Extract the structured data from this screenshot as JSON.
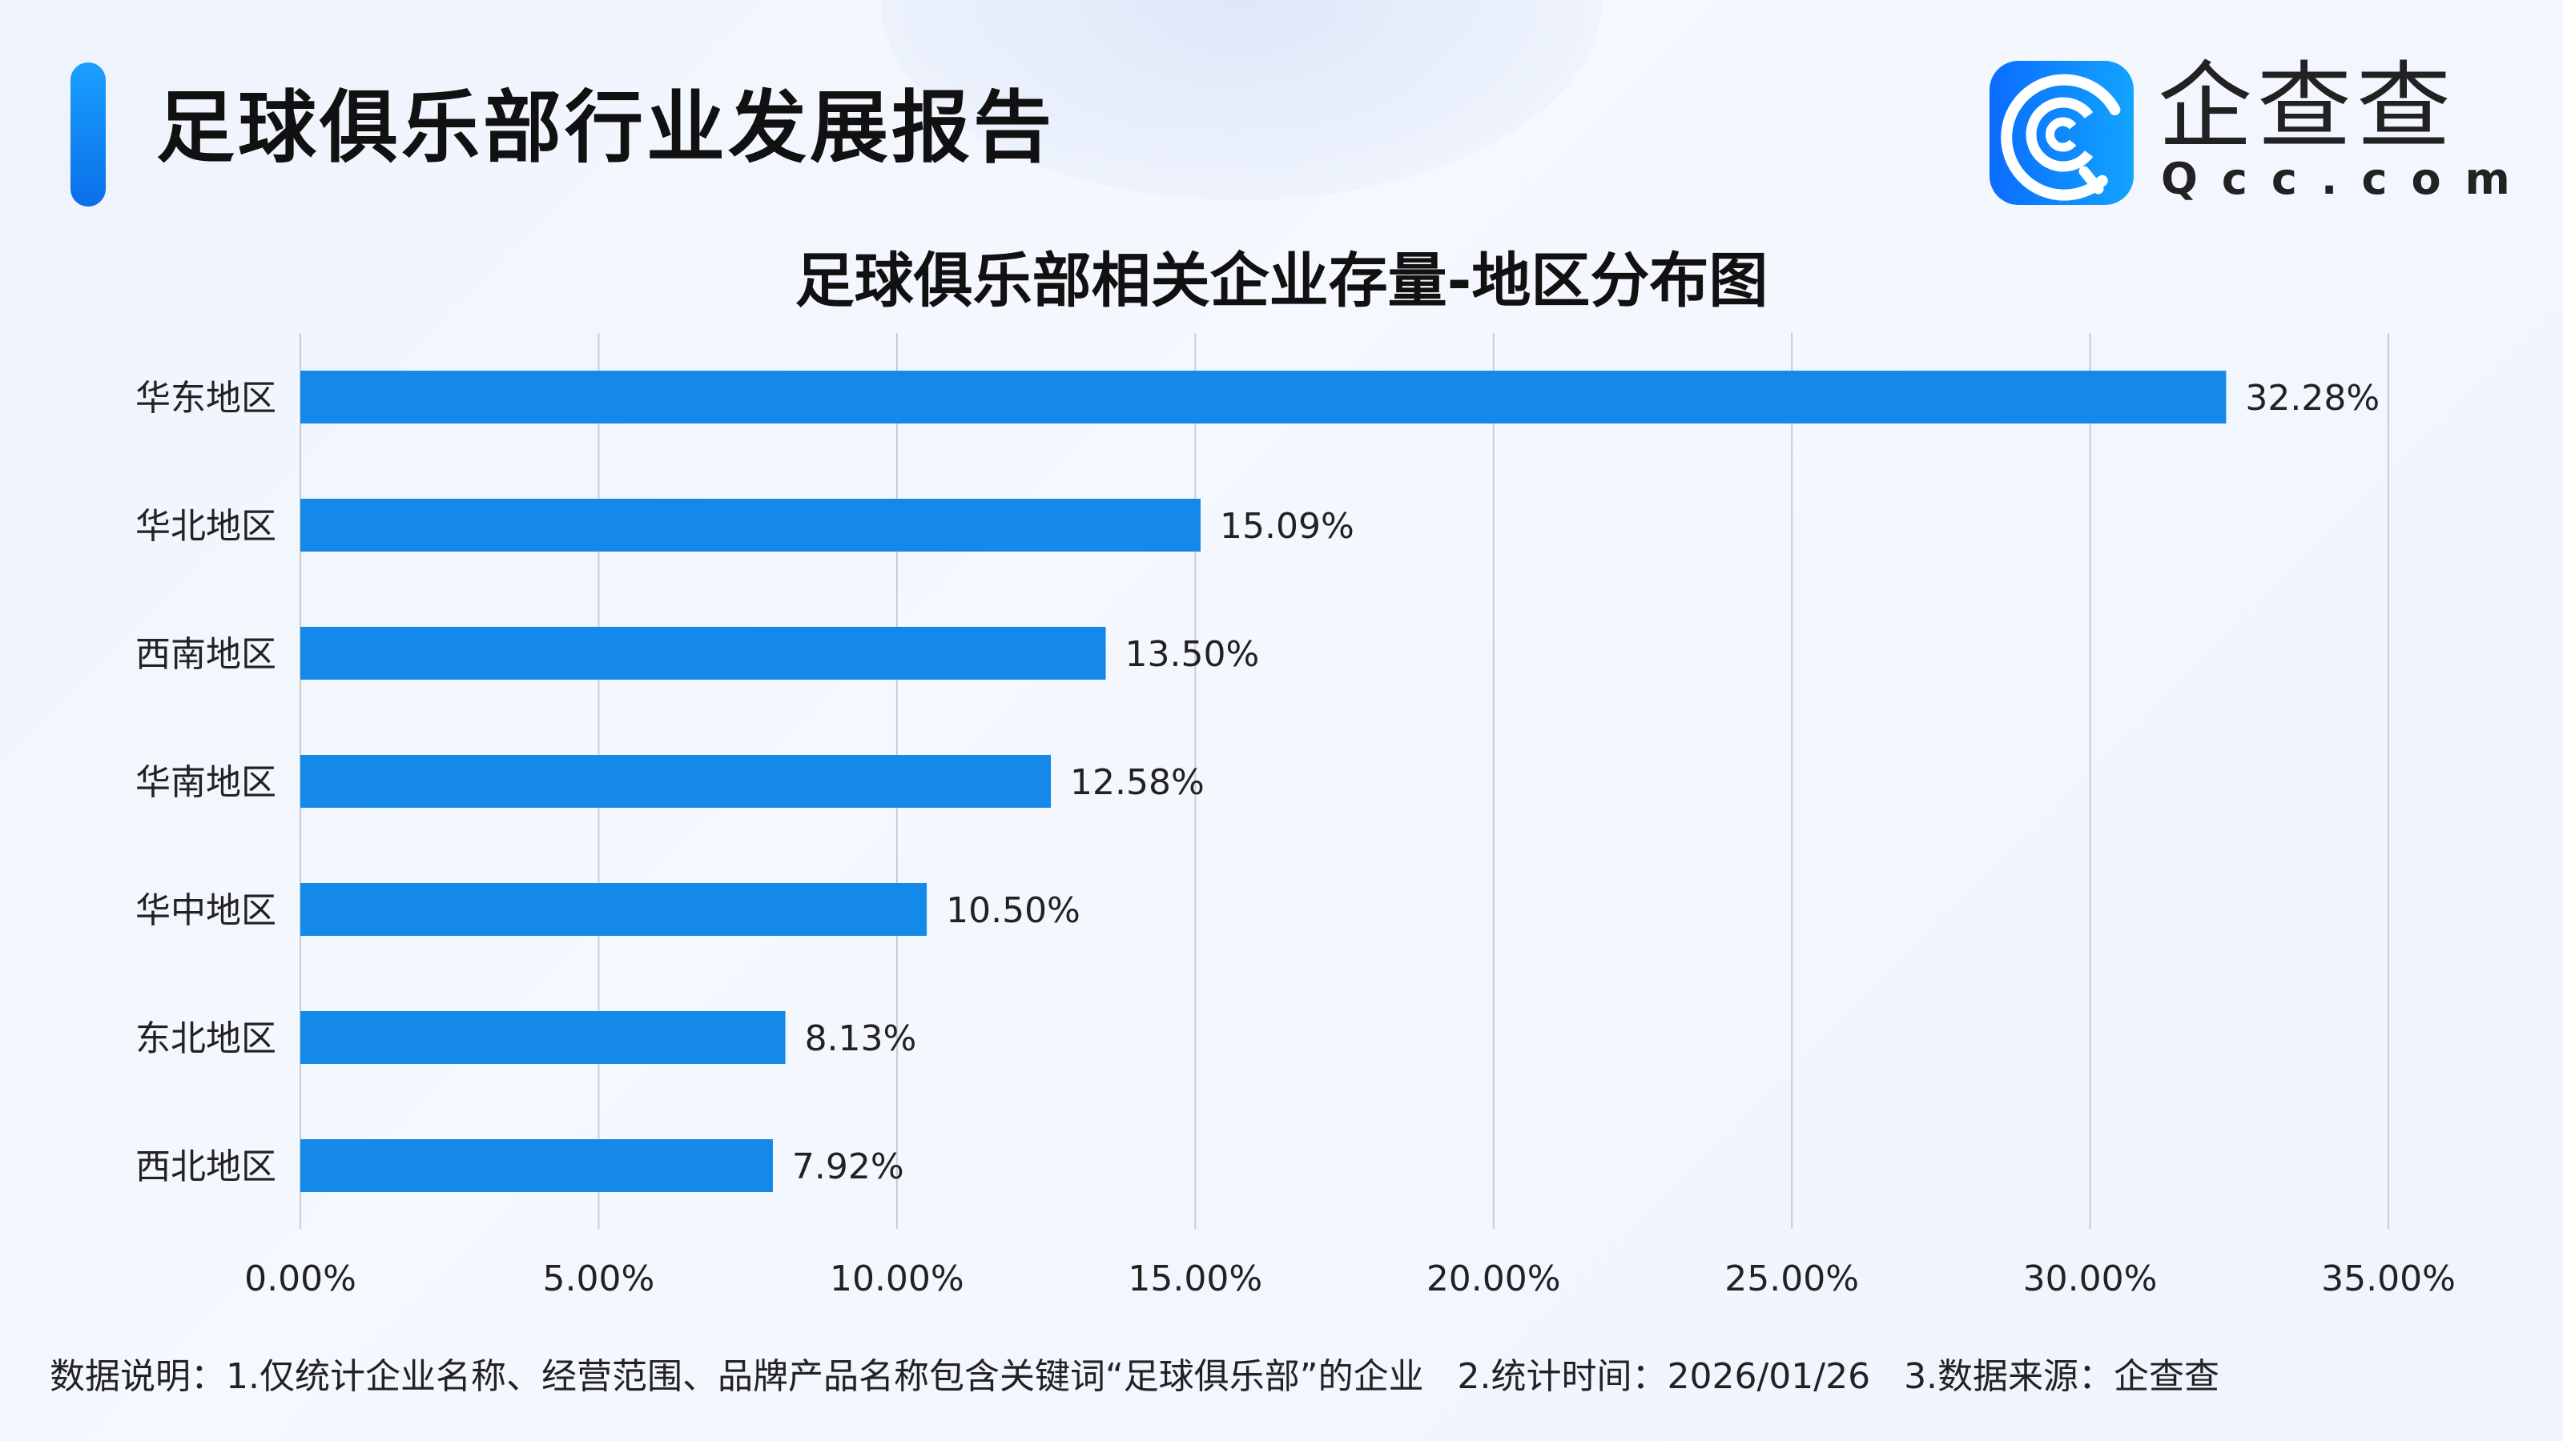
{
  "header": {
    "title": "足球俱乐部行业发展报告"
  },
  "logo": {
    "name_cn": "企查查",
    "name_en": "Qcc.com"
  },
  "colors": {
    "bar": "#1589ea",
    "accent": "#0a7ef0",
    "grid": "#c9ccd2"
  },
  "chart_data": {
    "type": "bar",
    "orientation": "horizontal",
    "title": "足球俱乐部相关企业存量-地区分布图",
    "categories": [
      "华东地区",
      "华北地区",
      "西南地区",
      "华南地区",
      "华中地区",
      "东北地区",
      "西北地区"
    ],
    "values": [
      32.28,
      15.09,
      13.5,
      12.58,
      10.5,
      8.13,
      7.92
    ],
    "data_labels": [
      "32.28%",
      "15.09%",
      "13.50%",
      "12.58%",
      "10.50%",
      "8.13%",
      "7.92%"
    ],
    "xlim": [
      0,
      35
    ],
    "x_ticks": [
      0,
      5,
      10,
      15,
      20,
      25,
      30,
      35
    ],
    "x_tick_labels": [
      "0.00%",
      "5.00%",
      "10.00%",
      "15.00%",
      "20.00%",
      "25.00%",
      "30.00%",
      "35.00%"
    ],
    "grid": "vertical",
    "legend": "none"
  },
  "footer": {
    "note": "数据说明：1.仅统计企业名称、经营范围、品牌产品名称包含关键词“足球俱乐部”的企业   2.统计时间：2026/01/26   3.数据来源：企查查"
  }
}
